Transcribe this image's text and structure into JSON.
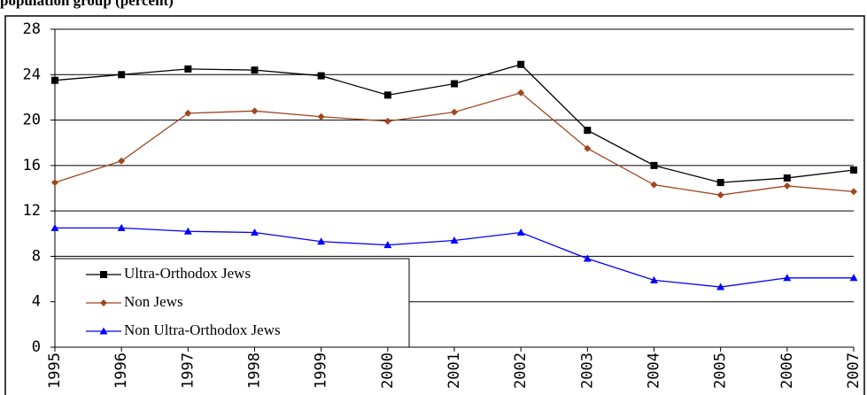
{
  "chart_data": {
    "type": "line",
    "title": "population group (percent)",
    "categories": [
      "1995",
      "1996",
      "1997",
      "1998",
      "1999",
      "2000",
      "2001",
      "2002",
      "2003",
      "2004",
      "2005",
      "2006",
      "2007"
    ],
    "series": [
      {
        "name": "Ultra-Orthodox Jews",
        "color": "#000000",
        "marker": "square",
        "values": [
          23.5,
          24.0,
          24.5,
          24.4,
          23.9,
          22.2,
          23.2,
          24.9,
          19.1,
          16.0,
          14.5,
          14.9,
          15.6
        ]
      },
      {
        "name": "Non Jews",
        "color": "#a0461e",
        "marker": "diamond",
        "values": [
          14.5,
          16.4,
          20.6,
          20.8,
          20.3,
          19.9,
          20.7,
          22.4,
          17.5,
          14.3,
          13.4,
          14.2,
          13.7
        ]
      },
      {
        "name": "Non Ultra-Orthodox Jews",
        "color": "#0000ff",
        "marker": "triangle",
        "values": [
          10.5,
          10.5,
          10.2,
          10.1,
          9.3,
          9.0,
          9.4,
          10.1,
          7.8,
          5.9,
          5.3,
          6.1,
          6.1
        ]
      }
    ],
    "ylim": [
      0,
      28
    ],
    "yticks": [
      0,
      4,
      8,
      12,
      16,
      20,
      24,
      28
    ],
    "grid": true,
    "legend": "lower-left"
  }
}
